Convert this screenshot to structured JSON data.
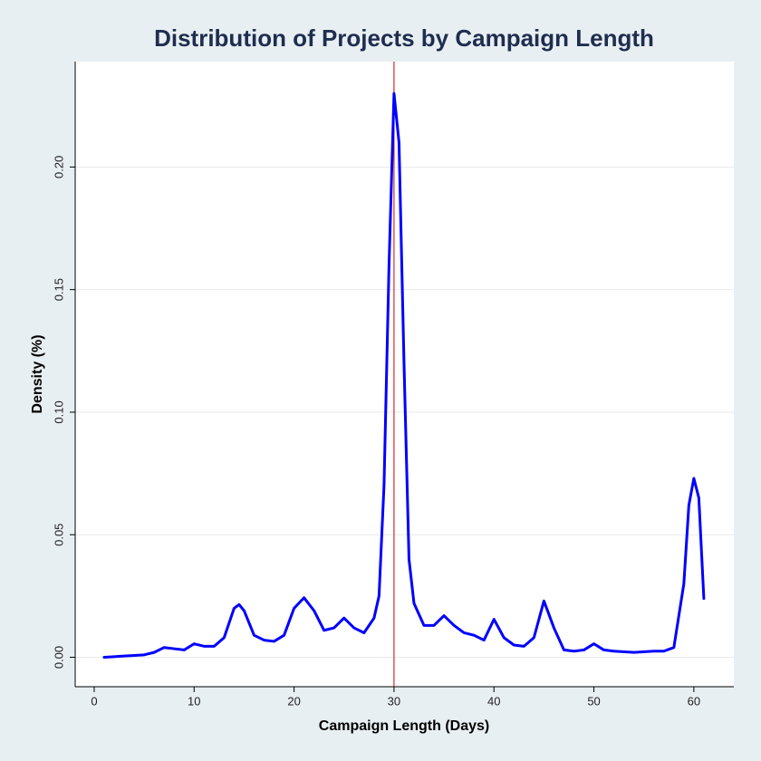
{
  "chart_data": {
    "type": "line",
    "title": "Distribution of Projects by Campaign Length",
    "xlabel": "Campaign Length (Days)",
    "ylabel": "Density (%)",
    "x": [
      1,
      3,
      5,
      6,
      7,
      8,
      9,
      10,
      11,
      12,
      13,
      14,
      14.5,
      15,
      16,
      17,
      18,
      19,
      20,
      21,
      22,
      23,
      24,
      25,
      26,
      27,
      28,
      28.5,
      29,
      29.5,
      30,
      30.5,
      31,
      31.5,
      32,
      33,
      34,
      35,
      36,
      37,
      38,
      39,
      40,
      41,
      42,
      43,
      44,
      45,
      46,
      47,
      48,
      49,
      50,
      51,
      52,
      54,
      56,
      57,
      58,
      59,
      59.5,
      60,
      60.5,
      61
    ],
    "series": [
      {
        "color": "#0000ff",
        "values": [
          0.0,
          0.0005,
          0.001,
          0.002,
          0.004,
          0.0035,
          0.003,
          0.0055,
          0.0045,
          0.0045,
          0.008,
          0.02,
          0.0215,
          0.019,
          0.009,
          0.007,
          0.0065,
          0.009,
          0.02,
          0.0243,
          0.019,
          0.011,
          0.012,
          0.016,
          0.012,
          0.01,
          0.016,
          0.025,
          0.07,
          0.16,
          0.23,
          0.21,
          0.12,
          0.04,
          0.022,
          0.013,
          0.013,
          0.017,
          0.013,
          0.01,
          0.009,
          0.007,
          0.0155,
          0.008,
          0.005,
          0.0045,
          0.008,
          0.023,
          0.012,
          0.003,
          0.0025,
          0.003,
          0.0055,
          0.003,
          0.0025,
          0.002,
          0.0025,
          0.0025,
          0.004,
          0.03,
          0.062,
          0.073,
          0.065,
          0.024
        ]
      }
    ],
    "reference_x": 30,
    "reference_color": "#cc0000",
    "xlim": [
      -1.9,
      64
    ],
    "ylim": [
      -0.012,
      0.243
    ],
    "xticks": [
      0,
      10,
      20,
      30,
      40,
      50,
      60
    ],
    "yticks": [
      {
        "value": 0,
        "label": "0.00"
      },
      {
        "value": 0.05,
        "label": "0.05"
      },
      {
        "value": 0.1,
        "label": "0.10"
      },
      {
        "value": 0.15,
        "label": "0.15"
      },
      {
        "value": 0.2,
        "label": "0.20"
      }
    ],
    "grid": true
  }
}
